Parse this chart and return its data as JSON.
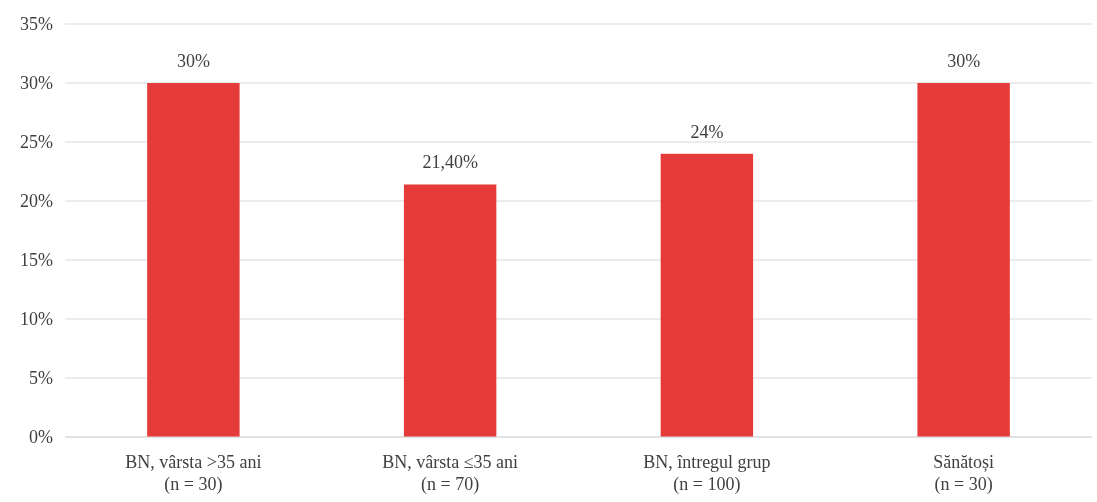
{
  "chart_data": {
    "type": "bar",
    "categories": [
      "BN, vârsta >35 ani\n(n = 30)",
      "BN, vârsta ≤35 ani\n(n = 70)",
      "BN, întregul grup\n(n = 100)",
      "Sănătoși\n(n = 30)"
    ],
    "values": [
      30,
      21.4,
      24,
      30
    ],
    "value_labels": [
      "30%",
      "21,40%",
      "24%",
      "30%"
    ],
    "color": "#e53b3b",
    "ylim": [
      0,
      35
    ],
    "yticks": [
      {
        "value": 0,
        "label": "0%"
      },
      {
        "value": 5,
        "label": "5%"
      },
      {
        "value": 10,
        "label": "10%"
      },
      {
        "value": 15,
        "label": "15%"
      },
      {
        "value": 20,
        "label": "20%"
      },
      {
        "value": 25,
        "label": "25%"
      },
      {
        "value": 30,
        "label": "30%"
      },
      {
        "value": 35,
        "label": "35%"
      }
    ],
    "grid": "y"
  }
}
